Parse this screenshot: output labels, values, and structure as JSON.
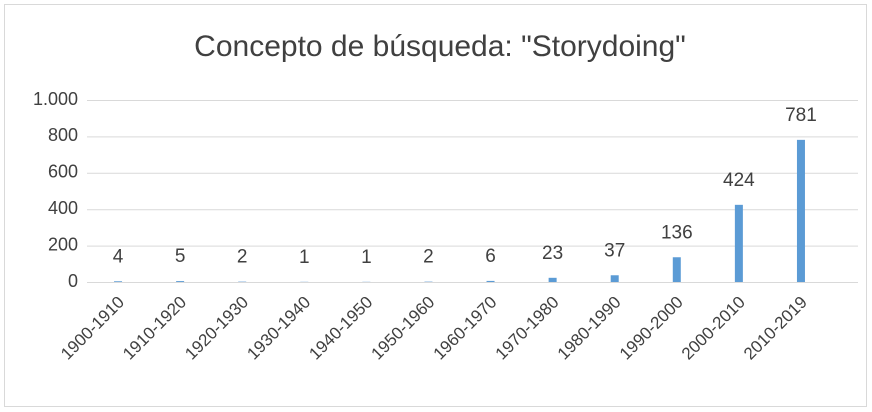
{
  "chart_data": {
    "type": "bar",
    "title": "Concepto de búsqueda: \"Storydoing\"",
    "categories": [
      "1900-1910",
      "1910-1920",
      "1920-1930",
      "1930-1940",
      "1940-1950",
      "1950-1960",
      "1960-1970",
      "1970-1980",
      "1980-1990",
      "1990-2000",
      "2000-2010",
      "2010-2019"
    ],
    "values": [
      4,
      5,
      2,
      1,
      1,
      2,
      6,
      23,
      37,
      136,
      424,
      781
    ],
    "color": "#5b9bd5",
    "ylim": [
      0,
      1000
    ],
    "yticks": [
      0,
      200,
      400,
      600,
      800,
      {
        "value": 1000,
        "label": "1.000"
      }
    ],
    "grid": true
  }
}
